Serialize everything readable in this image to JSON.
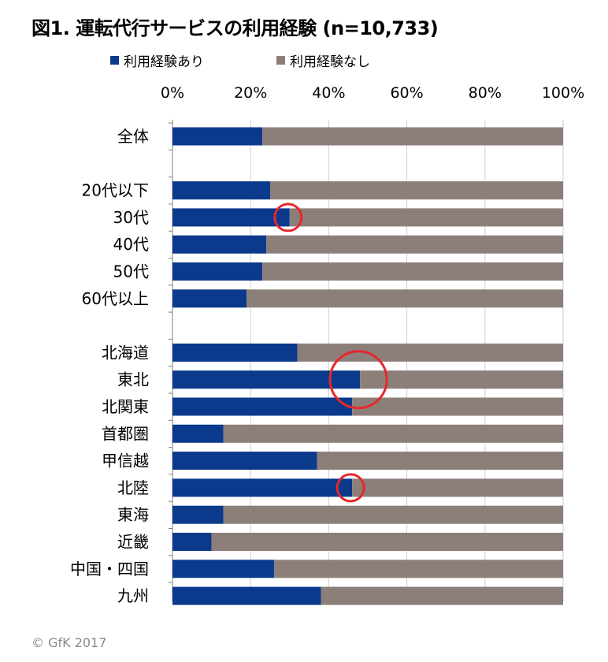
{
  "chart_data": {
    "type": "bar",
    "orientation": "horizontal",
    "stacked": true,
    "title": "図1. 運転代行サービスの利用経験 (n=10,733)",
    "categories": [
      "全体",
      "20代以下",
      "30代",
      "40代",
      "50代",
      "60代以上",
      "北海道",
      "東北",
      "北関東",
      "首都圏",
      "甲信越",
      "北陸",
      "東海",
      "近畿",
      "中国・四国",
      "九州"
    ],
    "category_groups": [
      [
        "全体"
      ],
      [
        "20代以下",
        "30代",
        "40代",
        "50代",
        "60代以上"
      ],
      [
        "北海道",
        "東北",
        "北関東",
        "首都圏",
        "甲信越",
        "北陸",
        "東海",
        "近畿",
        "中国・四国",
        "九州"
      ]
    ],
    "series": [
      {
        "name": "利用経験あり",
        "color": "#0b3a8c",
        "values": [
          23,
          25,
          30,
          24,
          23,
          19,
          32,
          48,
          46,
          13,
          37,
          46,
          13,
          10,
          26,
          38
        ]
      },
      {
        "name": "利用経験なし",
        "color": "#8c7f7a",
        "values": [
          77,
          75,
          70,
          76,
          77,
          81,
          68,
          52,
          54,
          87,
          63,
          54,
          87,
          90,
          74,
          62
        ]
      }
    ],
    "xlim": [
      0,
      100
    ],
    "x_ticks": [
      "0%",
      "20%",
      "40%",
      "60%",
      "80%",
      "100%"
    ],
    "grid": true,
    "legend_position": "top",
    "highlighted_categories": [
      "30代",
      "東北",
      "北陸"
    ],
    "highlight_color": "#e8262b"
  },
  "copyright": "© GfK 2017"
}
